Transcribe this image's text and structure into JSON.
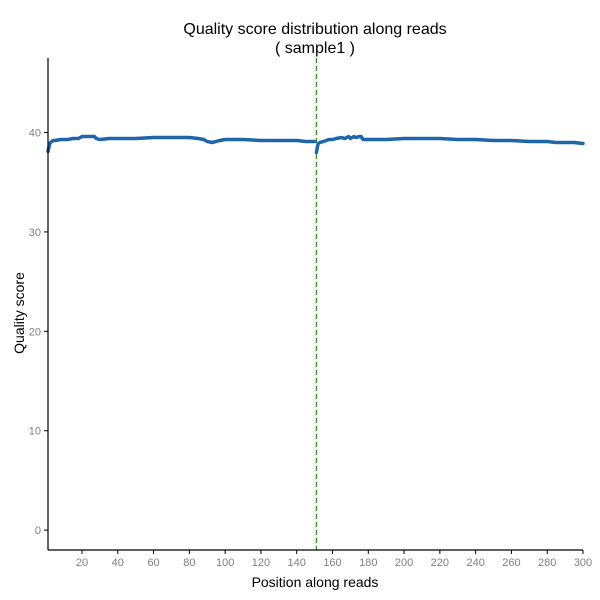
{
  "chart_data": {
    "type": "line",
    "title": "Quality score distribution along reads",
    "subtitle": "( sample1 )",
    "xlabel": "Position along reads",
    "ylabel": "Quality score",
    "xlim": [
      1,
      300
    ],
    "ylim": [
      -2,
      47.5
    ],
    "xticks": [
      20,
      40,
      60,
      80,
      100,
      120,
      140,
      160,
      180,
      200,
      220,
      240,
      260,
      280,
      300
    ],
    "yticks": [
      0,
      10,
      20,
      30,
      40
    ],
    "grid": false,
    "legend": "none",
    "read_boundary_x": 151,
    "colors": {
      "line": "#1f66a8",
      "boundary": "#3a8f2e"
    },
    "series": [
      {
        "x": [
          1,
          2,
          3,
          4,
          5,
          8,
          10,
          12,
          15,
          18,
          20,
          22,
          25,
          27,
          28,
          30,
          35,
          40,
          50,
          60,
          70,
          80,
          85,
          88,
          90,
          93,
          95,
          97,
          100,
          105,
          110,
          120,
          130,
          140,
          145,
          150,
          151,
          152,
          153,
          155,
          158,
          160,
          162,
          165,
          167,
          169,
          170,
          172,
          173,
          175,
          176,
          177,
          180,
          190,
          200,
          210,
          220,
          230,
          240,
          250,
          260,
          270,
          280,
          285,
          288,
          290,
          292,
          295,
          300
        ],
        "values": [
          38.1,
          38.9,
          39.1,
          39.2,
          39.2,
          39.3,
          39.3,
          39.3,
          39.4,
          39.4,
          39.6,
          39.6,
          39.6,
          39.6,
          39.4,
          39.3,
          39.4,
          39.4,
          39.4,
          39.5,
          39.5,
          39.5,
          39.4,
          39.3,
          39.1,
          39.0,
          39.1,
          39.2,
          39.3,
          39.3,
          39.3,
          39.2,
          39.2,
          39.2,
          39.1,
          39.1,
          38.0,
          38.9,
          39.0,
          39.1,
          39.3,
          39.3,
          39.4,
          39.5,
          39.4,
          39.6,
          39.4,
          39.6,
          39.5,
          39.6,
          39.6,
          39.3,
          39.3,
          39.3,
          39.4,
          39.4,
          39.4,
          39.3,
          39.3,
          39.2,
          39.2,
          39.1,
          39.1,
          39.0,
          39.0,
          39.0,
          39.0,
          39.0,
          38.9
        ]
      }
    ]
  }
}
